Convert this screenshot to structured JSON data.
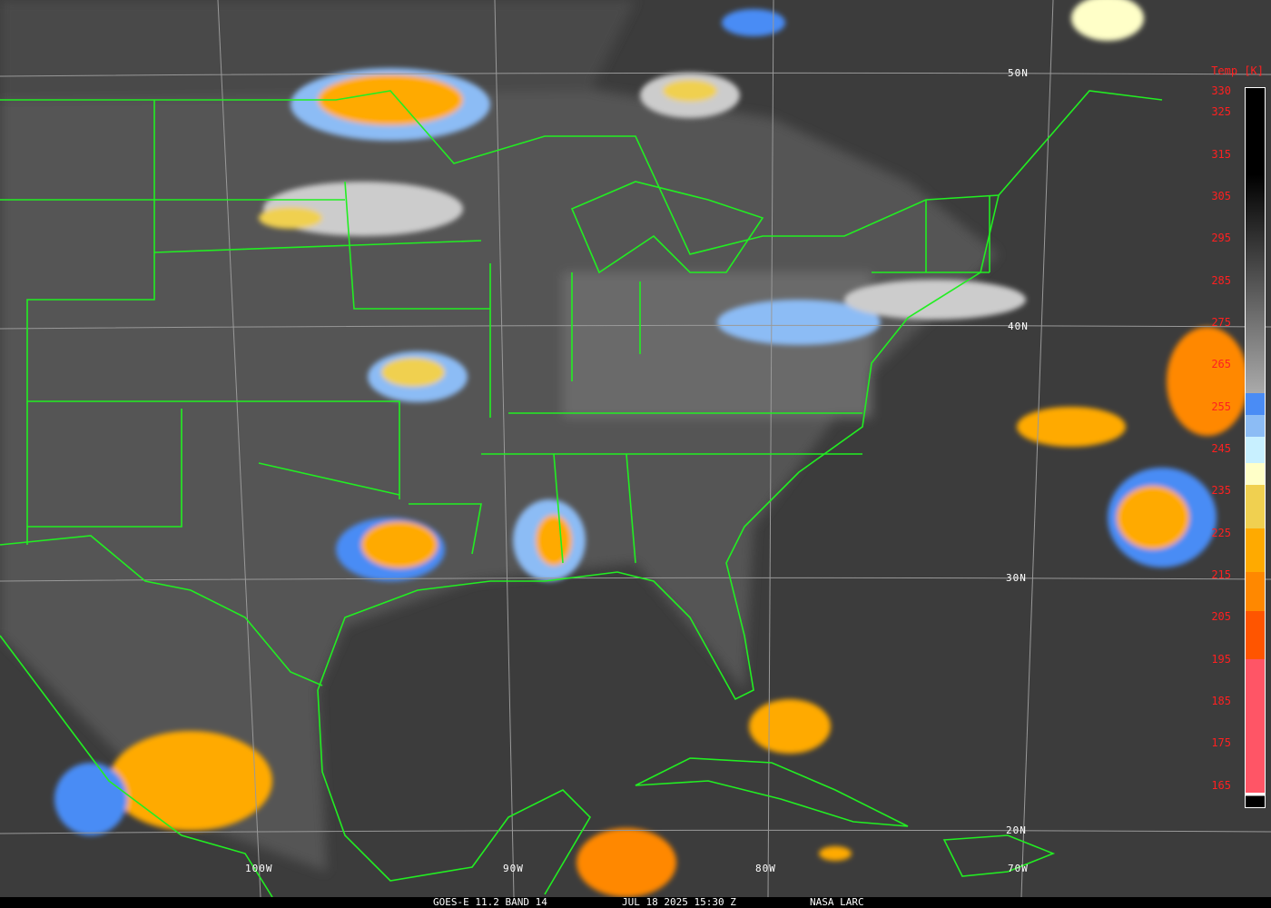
{
  "caption": {
    "product": "GOES-E 11.2 BAND 14",
    "datetime": "JUL 18 2025 15:30 Z",
    "source": "NASA LARC"
  },
  "grid": {
    "latitudes": [
      "50N",
      "40N",
      "30N",
      "20N"
    ],
    "longitudes": [
      "100W",
      "90W",
      "80W",
      "70W"
    ]
  },
  "colorbar": {
    "title": "Temp [K]",
    "ticks": [
      "330",
      "325",
      "315",
      "305",
      "295",
      "285",
      "275",
      "265",
      "255",
      "245",
      "235",
      "225",
      "215",
      "205",
      "195",
      "185",
      "175",
      "165"
    ],
    "colors": {
      "cold_black": "#000000",
      "gray_ramp_end": "#aaaaaa",
      "blue": "#4a8cf5",
      "light_blue": "#8cbcf5",
      "pale_cyan": "#c8f0ff",
      "pale_yellow": "#ffffc8",
      "yellow": "#f0d050",
      "orange_yellow": "#ffaa00",
      "orange": "#ff8800",
      "red_orange": "#ff5500",
      "pink": "#ff5566"
    }
  },
  "colors": {
    "boundaries": "#22ee22",
    "gridlines": "#999999",
    "tick_text": "#ff2020"
  }
}
